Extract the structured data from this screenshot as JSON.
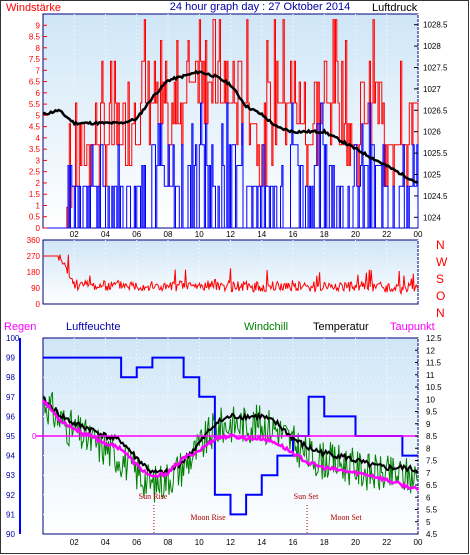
{
  "colors": {
    "wind_avg": "#ff0000",
    "wind_gust": "#0000ff",
    "pressure": "#000000",
    "windchill": "#008000",
    "temperature": "#000000",
    "dewpoint": "#ff00ff",
    "humidity": "#0000ff",
    "rain": "#ff00ff",
    "plot_bg_top": "#cfe6f7",
    "plot_bg_bottom": "#ffffff",
    "frame": "#000080"
  },
  "top_chart": {
    "title": "24 hour graph day : 27 Oktober 2014",
    "left_label": "Windstärke",
    "right_label": "Luftdruck",
    "left_ticks": [
      "0",
      "0.5",
      "1",
      "1.5",
      "2",
      "2.5",
      "3",
      "3.5",
      "4",
      "4.5",
      "5",
      "5.5",
      "6",
      "6.5",
      "7",
      "7.5",
      "8",
      "8.5",
      "9"
    ],
    "right_ticks": [
      "1024",
      "1024.5",
      "1025",
      "1025.5",
      "1026",
      "1026.5",
      "1027",
      "1027.5",
      "1028",
      "1028.5"
    ],
    "hour_ticks": [
      "02",
      "04",
      "06",
      "08",
      "10",
      "12",
      "14",
      "16",
      "18",
      "20",
      "22",
      "00"
    ]
  },
  "dir_chart": {
    "left_ticks": [
      "360",
      "270",
      "180",
      "90",
      "0"
    ],
    "compass": [
      "N",
      "W",
      "S",
      "O",
      "N"
    ]
  },
  "bottom_chart": {
    "labels": {
      "rain": "Regen",
      "humidity": "Luftfeuchte",
      "windchill": "Windchill",
      "temperature": "Temperatur",
      "dewpoint": "Taupunkt"
    },
    "humidity_ticks": [
      "90",
      "91",
      "92",
      "93",
      "94",
      "95",
      "96",
      "97",
      "98",
      "99",
      "100"
    ],
    "rain_zero": "0",
    "temp_ticks": [
      "4.5",
      "5",
      "5.5",
      "6",
      "6.5",
      "7",
      "7.5",
      "8",
      "8.5",
      "9",
      "9.5",
      "10",
      "10.5",
      "11",
      "11.5",
      "12",
      "12.5"
    ],
    "hour_ticks": [
      "02",
      "04",
      "06",
      "08",
      "10",
      "12",
      "14",
      "16",
      "18",
      "20",
      "22",
      "00"
    ],
    "annotations": {
      "sun_rise": "Sun Rise",
      "moon_rise": "Moon Rise",
      "sun_set": "Sun Set",
      "moon_set": "Moon Set"
    }
  },
  "chart_data": [
    {
      "type": "line",
      "title": "24 hour graph day : 27 Oktober 2014",
      "xlabel": "",
      "ylabel": "Windstärke",
      "y2label": "Luftdruck",
      "ylim": [
        0,
        9.5
      ],
      "y2lim": [
        1023.75,
        1028.75
      ],
      "x": [
        0,
        1,
        2,
        3,
        4,
        5,
        6,
        7,
        8,
        9,
        10,
        11,
        12,
        13,
        14,
        15,
        16,
        17,
        18,
        19,
        20,
        21,
        22,
        23,
        24
      ],
      "series": [
        {
          "name": "Luftdruck",
          "axis": "right",
          "values": [
            1026.4,
            1026.5,
            1026.2,
            1026.2,
            1026.2,
            1026.2,
            1026.3,
            1026.8,
            1027.2,
            1027.3,
            1027.4,
            1027.3,
            1027.1,
            1026.6,
            1026.4,
            1026.1,
            1026,
            1026,
            1026,
            1025.8,
            1025.6,
            1025.4,
            1025.2,
            1025,
            1024.8
          ]
        },
        {
          "name": "Windstärke Mittel",
          "axis": "left",
          "values": [
            0,
            0,
            1.8,
            3.7,
            3.7,
            3.7,
            5.5,
            5.5,
            3.7,
            5.5,
            7.4,
            5.5,
            5.5,
            5.5,
            3.7,
            5.5,
            5.5,
            3.7,
            5.5,
            5.5,
            3.7,
            5.5,
            3.7,
            3.7,
            3.7
          ]
        },
        {
          "name": "Windstärke Böen",
          "axis": "left",
          "values": [
            0,
            0,
            1.8,
            1.8,
            1.8,
            1.8,
            1.8,
            3.7,
            1.8,
            1.8,
            3.7,
            1.8,
            3.7,
            1.8,
            1.8,
            1.8,
            3.7,
            1.8,
            3.7,
            1.8,
            1.8,
            3.7,
            1.8,
            1.8,
            1.8
          ]
        }
      ]
    },
    {
      "type": "line",
      "title": "",
      "ylabel": "",
      "ylim": [
        0,
        360
      ],
      "x": [
        0,
        1,
        2,
        3,
        4,
        5,
        6,
        7,
        8,
        9,
        10,
        11,
        12,
        13,
        14,
        15,
        16,
        17,
        18,
        19,
        20,
        21,
        22,
        23,
        24
      ],
      "series": [
        {
          "name": "Windrichtung",
          "values": [
            270,
            270,
            110,
            105,
            100,
            110,
            105,
            100,
            95,
            105,
            100,
            110,
            100,
            100,
            95,
            100,
            105,
            95,
            100,
            100,
            95,
            100,
            90,
            85,
            90
          ]
        }
      ]
    },
    {
      "type": "line",
      "title": "",
      "ylabel": "Luftfeuchte",
      "y2label": "Temperatur",
      "ylim": [
        90,
        100
      ],
      "y2lim": [
        4.5,
        12.5
      ],
      "x": [
        0,
        1,
        2,
        3,
        4,
        5,
        6,
        7,
        8,
        9,
        10,
        11,
        12,
        13,
        14,
        15,
        16,
        17,
        18,
        19,
        20,
        21,
        22,
        23,
        24
      ],
      "series": [
        {
          "name": "Luftfeuchte",
          "axis": "left",
          "values": [
            99,
            99,
            99,
            99,
            99,
            98,
            98.5,
            99,
            99,
            98,
            97,
            92,
            91,
            92,
            93,
            94,
            95,
            97,
            96,
            96,
            95,
            95,
            95,
            94,
            94
          ]
        },
        {
          "name": "Temperatur",
          "axis": "right",
          "values": [
            10,
            9.4,
            9,
            8.8,
            8.5,
            8.3,
            7.6,
            7,
            7,
            7.5,
            8.2,
            9,
            9.3,
            9.3,
            9.3,
            9,
            8.4,
            8,
            7.8,
            7.7,
            7.5,
            7.3,
            7.2,
            7.2,
            7.1
          ]
        },
        {
          "name": "Windchill",
          "axis": "right",
          "values": [
            10,
            9.2,
            8.7,
            8.3,
            8,
            7.6,
            7,
            6.5,
            6.8,
            7.3,
            8,
            8.8,
            9,
            9,
            9,
            8.8,
            8.2,
            7.7,
            7.5,
            7.4,
            7.2,
            7,
            6.9,
            6.9,
            6.8
          ]
        },
        {
          "name": "Taupunkt",
          "axis": "right",
          "values": [
            10,
            9.2,
            8.8,
            8.5,
            8.2,
            8,
            7.3,
            6.8,
            7,
            7.6,
            7.9,
            8.4,
            8.5,
            8.4,
            8.4,
            8.2,
            7.8,
            7.4,
            7.2,
            7.1,
            7,
            6.9,
            6.7,
            6.5,
            6.3
          ]
        },
        {
          "name": "Regen",
          "axis": "left",
          "values": [
            0,
            0,
            0,
            0,
            0,
            0,
            0,
            0,
            0,
            0,
            0,
            0,
            0,
            0,
            0,
            0,
            0,
            0,
            0,
            0,
            0,
            0,
            0,
            0,
            0
          ]
        }
      ]
    }
  ]
}
